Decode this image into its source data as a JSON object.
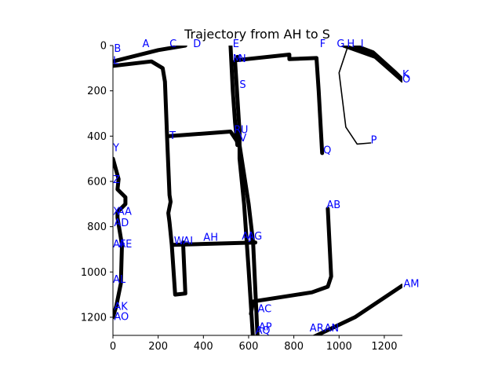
{
  "chart_data": {
    "type": "line",
    "title": "Trajectory from AH to S",
    "xlabel": "",
    "ylabel": "",
    "xlim": [
      0,
      1280
    ],
    "ylim": [
      1280,
      0
    ],
    "y_inverted": true,
    "grid": false,
    "xticks": [
      0,
      200,
      400,
      600,
      800,
      1000,
      1200
    ],
    "yticks": [
      0,
      200,
      400,
      600,
      800,
      1000,
      1200
    ],
    "colors": {
      "road": "#000000",
      "label": "#0000ff"
    },
    "roads": [
      {
        "width": "thick",
        "points": [
          [
            0,
            70
          ],
          [
            200,
            20
          ],
          [
            320,
            0
          ]
        ]
      },
      {
        "width": "thick",
        "points": [
          [
            0,
            90
          ],
          [
            170,
            70
          ],
          [
            220,
            100
          ],
          [
            230,
            160
          ],
          [
            240,
            420
          ],
          [
            250,
            660
          ],
          [
            255,
            690
          ],
          [
            245,
            740
          ],
          [
            250,
            780
          ],
          [
            260,
            880
          ],
          [
            275,
            1100
          ],
          [
            320,
            1095
          ],
          [
            310,
            870
          ]
        ]
      },
      {
        "width": "thick",
        "points": [
          [
            250,
            400
          ],
          [
            520,
            380
          ],
          [
            560,
            440
          ],
          [
            600,
            700
          ],
          [
            620,
            870
          ],
          [
            640,
            1300
          ]
        ]
      },
      {
        "width": "thick",
        "points": [
          [
            520,
            0
          ],
          [
            530,
            200
          ],
          [
            540,
            340
          ],
          [
            550,
            440
          ]
        ]
      },
      {
        "width": "thick",
        "points": [
          [
            550,
            50
          ],
          [
            545,
            65
          ],
          [
            780,
            40
          ],
          [
            780,
            60
          ],
          [
            900,
            55
          ],
          [
            910,
            200
          ],
          [
            925,
            475
          ]
        ]
      },
      {
        "width": "thick",
        "points": [
          [
            540,
            70
          ],
          [
            560,
            380
          ],
          [
            560,
            500
          ],
          [
            580,
            700
          ],
          [
            600,
            990
          ],
          [
            620,
            1300
          ]
        ]
      },
      {
        "width": "thick",
        "points": [
          [
            265,
            880
          ],
          [
            630,
            870
          ]
        ]
      },
      {
        "width": "thick",
        "points": [
          [
            950,
            720
          ],
          [
            965,
            1020
          ],
          [
            950,
            1065
          ],
          [
            880,
            1090
          ],
          [
            620,
            1130
          ],
          [
            610,
            1185
          ]
        ]
      },
      {
        "width": "thick",
        "points": [
          [
            880,
            1290
          ],
          [
            1070,
            1200
          ],
          [
            1280,
            1060
          ]
        ]
      },
      {
        "width": "thick",
        "points": [
          [
            1020,
            0
          ],
          [
            1160,
            50
          ],
          [
            1280,
            155
          ]
        ]
      },
      {
        "width": "thick",
        "points": [
          [
            1070,
            0
          ],
          [
            1150,
            30
          ],
          [
            1250,
            120
          ],
          [
            1280,
            150
          ]
        ]
      },
      {
        "width": "thick",
        "points": [
          [
            0,
            500
          ],
          [
            25,
            590
          ],
          [
            20,
            635
          ],
          [
            55,
            670
          ],
          [
            55,
            700
          ],
          [
            20,
            735
          ],
          [
            20,
            760
          ],
          [
            40,
            880
          ],
          [
            35,
            1050
          ],
          [
            15,
            1150
          ],
          [
            0,
            1200
          ]
        ]
      },
      {
        "width": "thin",
        "points": [
          [
            1040,
            0
          ],
          [
            1000,
            120
          ],
          [
            1030,
            360
          ],
          [
            1080,
            435
          ],
          [
            1140,
            430
          ]
        ]
      }
    ],
    "annotations": [
      {
        "text": "B",
        "x": 5,
        "y": 10
      },
      {
        "text": "A",
        "x": 130,
        "y": -10
      },
      {
        "text": "C",
        "x": 250,
        "y": -10
      },
      {
        "text": "D",
        "x": 355,
        "y": -10
      },
      {
        "text": "E",
        "x": 530,
        "y": -10
      },
      {
        "text": "F",
        "x": 915,
        "y": -10
      },
      {
        "text": "G",
        "x": 990,
        "y": -10
      },
      {
        "text": "H",
        "x": 1035,
        "y": -10
      },
      {
        "text": "I",
        "x": 1095,
        "y": -10
      },
      {
        "text": "L",
        "x": 0,
        "y": 65
      },
      {
        "text": "M",
        "x": 530,
        "y": 55
      },
      {
        "text": "N",
        "x": 555,
        "y": 55
      },
      {
        "text": "K",
        "x": 1280,
        "y": 125
      },
      {
        "text": "O",
        "x": 1280,
        "y": 145
      },
      {
        "text": "S",
        "x": 560,
        "y": 170
      },
      {
        "text": "R",
        "x": 535,
        "y": 370
      },
      {
        "text": "U",
        "x": 565,
        "y": 370
      },
      {
        "text": "V",
        "x": 560,
        "y": 405
      },
      {
        "text": "T",
        "x": 250,
        "y": 395
      },
      {
        "text": "P",
        "x": 1140,
        "y": 415
      },
      {
        "text": "Q",
        "x": 930,
        "y": 460
      },
      {
        "text": "Y",
        "x": 0,
        "y": 450
      },
      {
        "text": "Z",
        "x": 0,
        "y": 590
      },
      {
        "text": "AB",
        "x": 945,
        "y": 700
      },
      {
        "text": "X",
        "x": 0,
        "y": 730
      },
      {
        "text": "AA",
        "x": 20,
        "y": 730
      },
      {
        "text": "AD",
        "x": 5,
        "y": 780
      },
      {
        "text": "AH",
        "x": 400,
        "y": 845
      },
      {
        "text": "AJ",
        "x": 570,
        "y": 840
      },
      {
        "text": "AG",
        "x": 595,
        "y": 840
      },
      {
        "text": "W",
        "x": 270,
        "y": 860
      },
      {
        "text": "AI",
        "x": 310,
        "y": 860
      },
      {
        "text": "AF",
        "x": 0,
        "y": 875
      },
      {
        "text": "AE",
        "x": 25,
        "y": 875
      },
      {
        "text": "AL",
        "x": 0,
        "y": 1030
      },
      {
        "text": "AK",
        "x": 5,
        "y": 1150
      },
      {
        "text": "AO",
        "x": 5,
        "y": 1195
      },
      {
        "text": "AC",
        "x": 640,
        "y": 1160
      },
      {
        "text": "AP",
        "x": 645,
        "y": 1240
      },
      {
        "text": "AQ",
        "x": 630,
        "y": 1255
      },
      {
        "text": "AR",
        "x": 870,
        "y": 1245
      },
      {
        "text": "AN",
        "x": 935,
        "y": 1245
      },
      {
        "text": "AM",
        "x": 1285,
        "y": 1050
      }
    ]
  }
}
